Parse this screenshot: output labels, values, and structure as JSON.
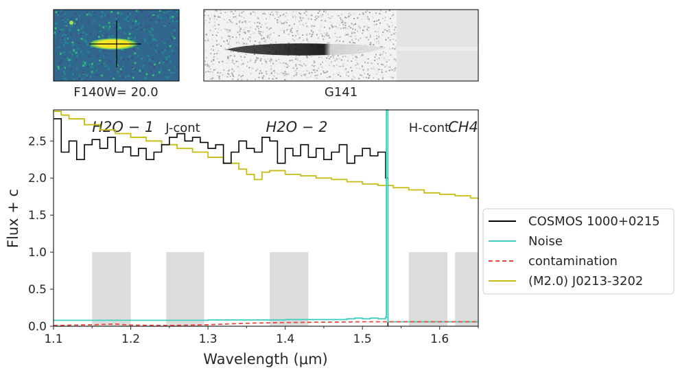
{
  "images": {
    "direct": {
      "caption": "F140W= 20.0"
    },
    "spectrum2d": {
      "caption": "G141"
    }
  },
  "chart_data": {
    "type": "line",
    "xlabel": "Wavelength (μm)",
    "ylabel": "Flux + c",
    "xlim": [
      1.1,
      1.65
    ],
    "ylim": [
      0.0,
      2.92
    ],
    "xticks": [
      "1.1",
      "1.2",
      "1.3",
      "1.4",
      "1.5",
      "1.6"
    ],
    "xtick_values": [
      1.1,
      1.2,
      1.3,
      1.4,
      1.5,
      1.6
    ],
    "yticks": [
      "0.0",
      "0.5",
      "1.0",
      "1.5",
      "2.0",
      "2.5"
    ],
    "ytick_values": [
      0.0,
      0.5,
      1.0,
      1.5,
      2.0,
      2.5
    ],
    "grid": false,
    "legend_placement": "center-right outside",
    "bands": [
      {
        "label": "H2O − 1",
        "xmin": 1.15,
        "xmax": 1.2,
        "height": 1.0,
        "italic": true
      },
      {
        "label": "J-cont",
        "xmin": 1.246,
        "xmax": 1.295,
        "height": 1.0,
        "italic": false
      },
      {
        "label": "H2O − 2",
        "xmin": 1.38,
        "xmax": 1.43,
        "height": 1.0,
        "italic": true
      },
      {
        "label": "H-cont",
        "xmin": 1.56,
        "xmax": 1.61,
        "height": 1.0,
        "italic": false
      },
      {
        "label": "CH4",
        "xmin": 1.62,
        "xmax": 1.65,
        "height": 1.0,
        "italic": true
      }
    ],
    "cutoff_x": 1.533,
    "series": [
      {
        "name": "COSMOS 1000+0215",
        "color": "#000000",
        "style": "steps",
        "x": [
          1.1,
          1.11,
          1.12,
          1.13,
          1.14,
          1.15,
          1.16,
          1.17,
          1.18,
          1.19,
          1.2,
          1.21,
          1.22,
          1.23,
          1.24,
          1.25,
          1.26,
          1.27,
          1.28,
          1.29,
          1.3,
          1.31,
          1.32,
          1.33,
          1.34,
          1.35,
          1.36,
          1.37,
          1.38,
          1.39,
          1.4,
          1.41,
          1.42,
          1.43,
          1.44,
          1.45,
          1.46,
          1.47,
          1.48,
          1.49,
          1.5,
          1.51,
          1.52,
          1.53
        ],
        "y": [
          2.8,
          2.35,
          2.5,
          2.25,
          2.45,
          2.52,
          2.4,
          2.55,
          2.35,
          2.42,
          2.3,
          2.4,
          2.25,
          2.35,
          2.45,
          2.55,
          2.6,
          2.5,
          2.55,
          2.48,
          2.4,
          2.45,
          2.2,
          2.35,
          2.5,
          2.4,
          2.35,
          2.55,
          2.5,
          2.2,
          2.4,
          2.3,
          2.45,
          2.28,
          2.4,
          2.25,
          2.35,
          2.45,
          2.2,
          2.3,
          2.4,
          2.3,
          2.35,
          2.0
        ]
      },
      {
        "name": "Noise",
        "color": "#40cfc0",
        "style": "steps",
        "x": [
          1.1,
          1.2,
          1.3,
          1.4,
          1.48,
          1.49,
          1.5,
          1.51,
          1.52,
          1.53,
          1.531,
          1.533,
          1.65
        ],
        "y": [
          0.08,
          0.08,
          0.085,
          0.09,
          0.1,
          0.11,
          0.1,
          0.11,
          0.1,
          0.12,
          2.92,
          0.06,
          0.06
        ]
      },
      {
        "name": "contamination",
        "color": "#e8473b",
        "style": "dashed",
        "x": [
          1.1,
          1.15,
          1.18,
          1.2,
          1.25,
          1.3,
          1.35,
          1.4,
          1.45,
          1.5,
          1.55,
          1.6,
          1.65
        ],
        "y": [
          0.01,
          0.02,
          0.03,
          0.015,
          0.01,
          0.02,
          0.04,
          0.05,
          0.055,
          0.06,
          0.06,
          0.06,
          0.06
        ]
      },
      {
        "name": "(M2.0) J0213-3202",
        "color": "#c6bb11",
        "style": "steps",
        "x": [
          1.1,
          1.11,
          1.12,
          1.14,
          1.16,
          1.18,
          1.2,
          1.22,
          1.24,
          1.26,
          1.28,
          1.3,
          1.32,
          1.34,
          1.35,
          1.36,
          1.37,
          1.38,
          1.4,
          1.42,
          1.44,
          1.46,
          1.48,
          1.5,
          1.52,
          1.54,
          1.56,
          1.58,
          1.6,
          1.62,
          1.64,
          1.65
        ],
        "y": [
          2.9,
          2.85,
          2.8,
          2.72,
          2.65,
          2.6,
          2.55,
          2.5,
          2.45,
          2.4,
          2.35,
          2.28,
          2.2,
          2.12,
          2.05,
          1.98,
          2.08,
          2.1,
          2.05,
          2.03,
          2.0,
          1.98,
          1.95,
          1.92,
          1.9,
          1.87,
          1.84,
          1.8,
          1.78,
          1.76,
          1.73,
          1.72
        ]
      }
    ]
  }
}
